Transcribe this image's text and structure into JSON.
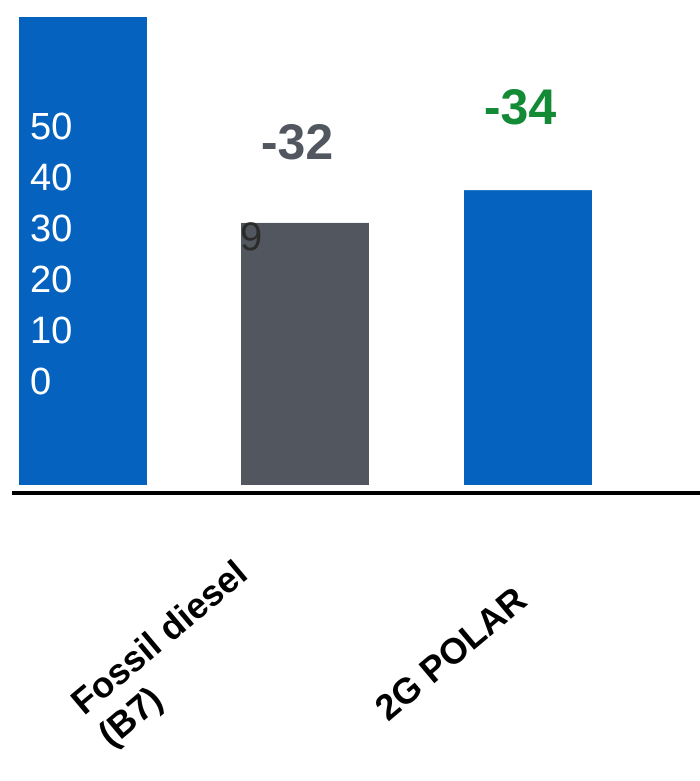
{
  "chart_data": {
    "type": "bar",
    "title": "",
    "xlabel": "",
    "ylabel": "",
    "bars": [
      {
        "category_lines": [],
        "value": 100,
        "color": "#0563bf"
      },
      {
        "category_lines": [
          "Fossil diesel",
          "(B7)"
        ],
        "value": 56,
        "color": "#52575f"
      },
      {
        "category_lines": [
          "2G POLAR"
        ],
        "value": 63,
        "color": "#0563bf"
      }
    ],
    "ylim": [
      0,
      100
    ],
    "y_ticks": [
      "50",
      "40",
      "30",
      "20",
      "10",
      "0"
    ],
    "inside_label": "9",
    "deltas": [
      {
        "label": "-32",
        "color": "#52575f"
      },
      {
        "label": "-34",
        "color": "#138a36"
      }
    ],
    "grid": false,
    "legend": "none"
  }
}
